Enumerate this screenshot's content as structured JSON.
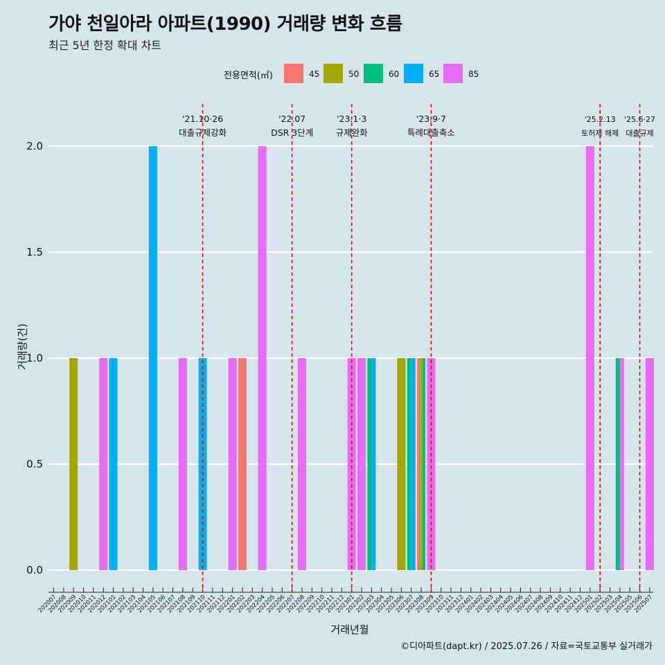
{
  "chart_data": {
    "type": "bar",
    "title": "가야 천일아라 아파트(1990) 거래량 변화 흐름",
    "subtitle": "최근 5년 한정 확대 차트",
    "xlabel": "거래년월",
    "ylabel": "거래량(건)",
    "ylim": [
      0,
      2.0
    ],
    "yticks": [
      "0.0",
      "0.5",
      "1.0",
      "1.5",
      "2.0"
    ],
    "grid": true,
    "legend_placement": "top",
    "legend_title": "전용면적(㎡)",
    "categories": [
      "202007",
      "202008",
      "202009",
      "202010",
      "202011",
      "202012",
      "202101",
      "202102",
      "202103",
      "202104",
      "202105",
      "202106",
      "202107",
      "202108",
      "202109",
      "202110",
      "202111",
      "202112",
      "202201",
      "202202",
      "202203",
      "202204",
      "202205",
      "202206",
      "202207",
      "202208",
      "202209",
      "202210",
      "202211",
      "202212",
      "202301",
      "202302",
      "202303",
      "202304",
      "202305",
      "202306",
      "202307",
      "202308",
      "202309",
      "202310",
      "202311",
      "202312",
      "202401",
      "202402",
      "202403",
      "202404",
      "202405",
      "202406",
      "202407",
      "202408",
      "202409",
      "202410",
      "202411",
      "202412",
      "202501",
      "202502",
      "202503",
      "202504",
      "202505",
      "202506",
      "202507"
    ],
    "series": [
      {
        "name": "45",
        "color": "#f8766d",
        "values": [
          0,
          0,
          0,
          0,
          0,
          0,
          0,
          0,
          0,
          0,
          0,
          0,
          0,
          0,
          0,
          0,
          0,
          0,
          0,
          1,
          0,
          0,
          0,
          0,
          0,
          0,
          0,
          0,
          0,
          0,
          0,
          0,
          0,
          0,
          0,
          0,
          0,
          1,
          0,
          0,
          0,
          0,
          0,
          0,
          0,
          0,
          0,
          0,
          0,
          0,
          0,
          0,
          0,
          0,
          0,
          0,
          0,
          0,
          0,
          0,
          0
        ]
      },
      {
        "name": "50",
        "color": "#a3a500",
        "values": [
          0,
          0,
          1,
          0,
          0,
          0,
          0,
          0,
          0,
          0,
          0,
          0,
          0,
          0,
          0,
          0,
          0,
          0,
          0,
          0,
          0,
          0,
          0,
          0,
          0,
          0,
          0,
          0,
          0,
          0,
          0,
          0,
          0,
          0,
          0,
          1,
          0,
          1,
          0,
          0,
          0,
          0,
          0,
          0,
          0,
          0,
          0,
          0,
          0,
          0,
          0,
          0,
          0,
          0,
          0,
          0,
          0,
          0,
          0,
          0,
          0
        ]
      },
      {
        "name": "60",
        "color": "#00bf7d",
        "values": [
          0,
          0,
          0,
          0,
          0,
          0,
          0,
          0,
          0,
          0,
          0,
          0,
          0,
          0,
          0,
          0,
          0,
          0,
          0,
          0,
          0,
          0,
          0,
          0,
          0,
          0,
          0,
          0,
          0,
          0,
          0,
          0,
          1,
          0,
          0,
          0,
          1,
          1,
          0,
          0,
          0,
          0,
          0,
          0,
          0,
          0,
          0,
          0,
          0,
          0,
          0,
          0,
          0,
          0,
          0,
          0,
          0,
          1,
          0,
          0,
          0
        ]
      },
      {
        "name": "65",
        "color": "#00b0f6",
        "values": [
          0,
          0,
          0,
          0,
          0,
          0,
          1,
          0,
          0,
          0,
          2,
          0,
          0,
          0,
          0,
          1,
          0,
          0,
          0,
          0,
          0,
          0,
          0,
          0,
          0,
          0,
          0,
          0,
          0,
          0,
          0,
          0,
          1,
          0,
          0,
          0,
          1,
          0,
          0,
          0,
          0,
          0,
          0,
          0,
          0,
          0,
          0,
          0,
          0,
          0,
          0,
          0,
          0,
          0,
          0,
          0,
          0,
          0,
          0,
          0,
          0
        ]
      },
      {
        "name": "85",
        "color": "#e76bf3",
        "values": [
          0,
          0,
          0,
          0,
          0,
          1,
          0,
          0,
          0,
          0,
          0,
          0,
          0,
          1,
          0,
          0,
          0,
          0,
          1,
          0,
          0,
          2,
          0,
          0,
          0,
          1,
          0,
          0,
          0,
          0,
          1,
          1,
          0,
          0,
          0,
          0,
          0,
          0,
          1,
          0,
          0,
          0,
          0,
          0,
          0,
          0,
          0,
          0,
          0,
          0,
          0,
          0,
          0,
          0,
          2,
          0,
          0,
          1,
          0,
          0,
          1
        ]
      }
    ],
    "events": [
      {
        "category": "202110",
        "date": "'21.10·26",
        "label": "대출규제강화"
      },
      {
        "category": "202207",
        "date": "'22.07",
        "label": "DSR 3단계"
      },
      {
        "category": "202301",
        "date": "'23.1·3",
        "label": "규제완화"
      },
      {
        "category": "202309",
        "date": "'23.9·7",
        "label": "특례대출축소"
      },
      {
        "category": "202502",
        "date": "'25.2.13",
        "label": "토허제 해제"
      },
      {
        "category": "202506",
        "date": "'25.6·27",
        "label": "대출규제"
      }
    ],
    "event_line_color": "#ff0000"
  },
  "caption": "©디아파트(dapt.kr) / 2025.07.26 / 자료=국토교통부 실거래가"
}
